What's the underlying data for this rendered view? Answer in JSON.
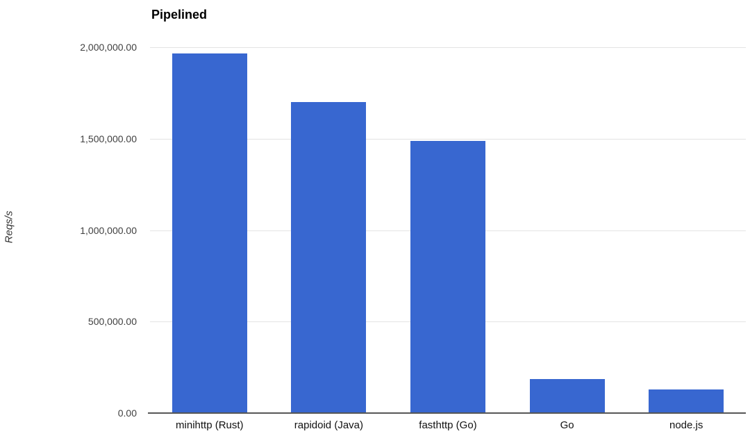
{
  "chart_data": {
    "type": "bar",
    "title": "Pipelined",
    "xlabel": "",
    "ylabel": "Reqs/s",
    "categories": [
      "minihttp (Rust)",
      "rapidoid (Java)",
      "fasthttp (Go)",
      "Go",
      "node.js"
    ],
    "values": [
      1966000,
      1700000,
      1486000,
      185000,
      130000
    ],
    "ylim": [
      0,
      2000000
    ],
    "ytick_interval": 500000,
    "yticks": [
      {
        "value": 0,
        "label": "0.00"
      },
      {
        "value": 500000,
        "label": "500,000.00"
      },
      {
        "value": 1000000,
        "label": "1,000,000.00"
      },
      {
        "value": 1500000,
        "label": "1,500,000.00"
      },
      {
        "value": 2000000,
        "label": "2,000,000.00"
      }
    ],
    "grid": true,
    "legend_position": "none",
    "bar_color": "#3867d0"
  },
  "colors": {
    "background": "#ffffff",
    "bar": "#3867d0",
    "gridline": "#e3e3e3",
    "axis_line": "#565656",
    "title_text": "#000000",
    "ytick_text": "#404040",
    "xtick_text": "#111111",
    "y_axis_title_text": "#333333"
  }
}
